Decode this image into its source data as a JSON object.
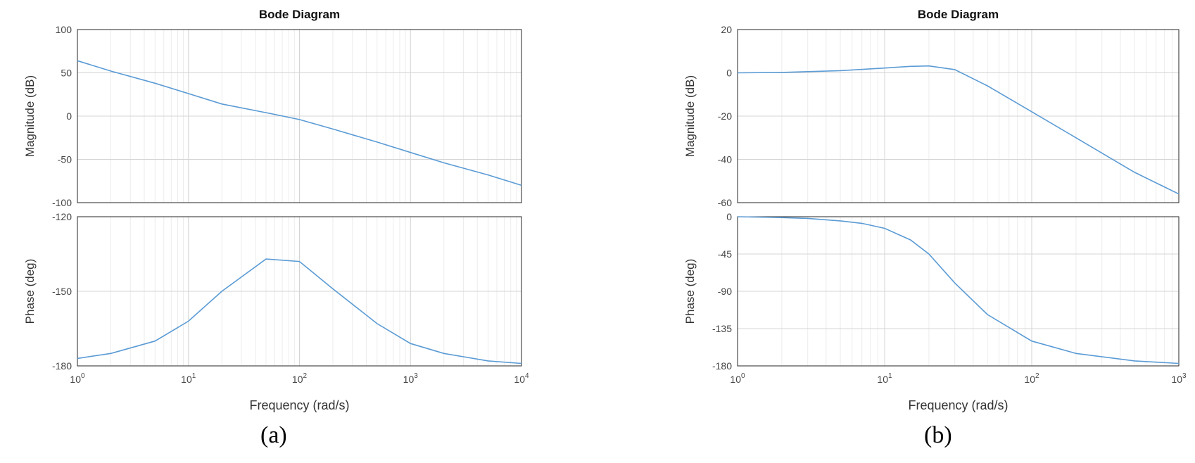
{
  "chart_data": [
    {
      "panel_label": "(a)",
      "title": "Bode Diagram",
      "type": "line",
      "xlabel": "Frequency  (rad/s)",
      "x_scale": "log",
      "xlim": [
        1,
        10000
      ],
      "x_ticks": [
        1,
        10,
        100,
        1000,
        10000
      ],
      "x_tick_labels": [
        {
          "base": "10",
          "exp": "0"
        },
        {
          "base": "10",
          "exp": "1"
        },
        {
          "base": "10",
          "exp": "2"
        },
        {
          "base": "10",
          "exp": "3"
        },
        {
          "base": "10",
          "exp": "4"
        }
      ],
      "grid": true,
      "line_color": "#5b9bd5",
      "magnitude": {
        "ylabel": "Magnitude (dB)",
        "ylim": [
          -100,
          100
        ],
        "y_ticks": [
          100,
          50,
          0,
          -50,
          -100
        ],
        "y_tick_labels": [
          "100",
          "50",
          "0",
          "-50",
          "-100"
        ],
        "x": [
          1,
          2,
          5,
          10,
          20,
          50,
          100,
          200,
          500,
          1000,
          2000,
          5000,
          10000
        ],
        "y": [
          64,
          52,
          38,
          26,
          14,
          4,
          -4,
          -15,
          -30,
          -42,
          -54,
          -68,
          -80
        ]
      },
      "phase": {
        "ylabel": "Phase (deg)",
        "ylim": [
          -180,
          -120
        ],
        "y_ticks": [
          -120,
          -150,
          -180
        ],
        "y_tick_labels": [
          "-120",
          "-150",
          "-180"
        ],
        "x": [
          1,
          2,
          5,
          10,
          20,
          50,
          100,
          200,
          500,
          1000,
          2000,
          5000,
          10000
        ],
        "y": [
          -177,
          -175,
          -170,
          -162,
          -150,
          -137,
          -138,
          -149,
          -163,
          -171,
          -175,
          -178,
          -179
        ]
      }
    },
    {
      "panel_label": "(b)",
      "title": "Bode Diagram",
      "type": "line",
      "xlabel": "Frequency  (rad/s)",
      "x_scale": "log",
      "xlim": [
        1,
        1000
      ],
      "x_ticks": [
        1,
        10,
        100,
        1000
      ],
      "x_tick_labels": [
        {
          "base": "10",
          "exp": "0"
        },
        {
          "base": "10",
          "exp": "1"
        },
        {
          "base": "10",
          "exp": "2"
        },
        {
          "base": "10",
          "exp": "3"
        }
      ],
      "grid": true,
      "line_color": "#5b9bd5",
      "magnitude": {
        "ylabel": "Magnitude (dB)",
        "ylim": [
          -60,
          20
        ],
        "y_ticks": [
          20,
          0,
          -20,
          -40,
          -60
        ],
        "y_tick_labels": [
          "20",
          "0",
          "-20",
          "-40",
          "-60"
        ],
        "x": [
          1,
          2,
          5,
          10,
          15,
          20,
          30,
          50,
          100,
          200,
          500,
          1000
        ],
        "y": [
          0,
          0.2,
          1,
          2.2,
          3,
          3.2,
          1.5,
          -6,
          -18,
          -30,
          -46,
          -56
        ]
      },
      "phase": {
        "ylabel": "Phase (deg)",
        "ylim": [
          -180,
          0
        ],
        "y_ticks": [
          0,
          -45,
          -90,
          -135,
          -180
        ],
        "y_tick_labels": [
          "0",
          "-45",
          "-90",
          "-135",
          "-180"
        ],
        "x": [
          1,
          2,
          3,
          5,
          7,
          10,
          15,
          20,
          30,
          50,
          100,
          200,
          500,
          1000
        ],
        "y": [
          0,
          -1,
          -2,
          -5,
          -8,
          -14,
          -28,
          -45,
          -80,
          -118,
          -150,
          -165,
          -174,
          -177
        ]
      }
    }
  ]
}
